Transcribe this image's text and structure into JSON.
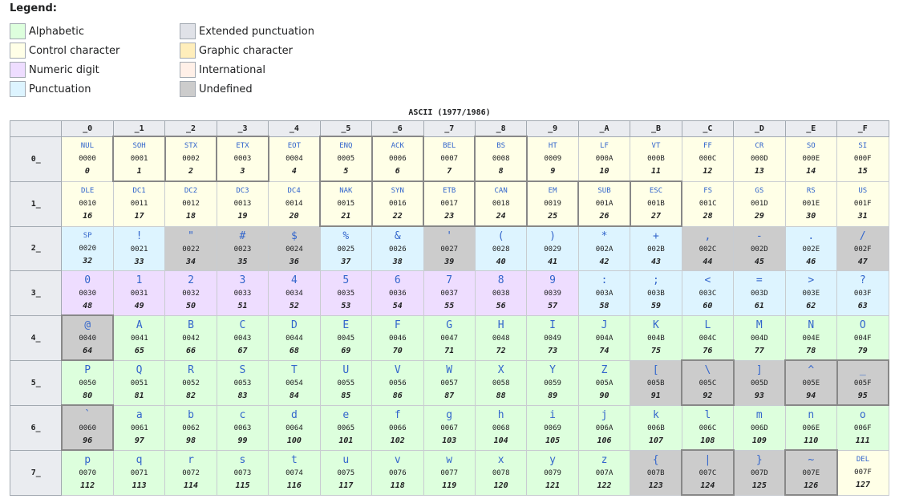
{
  "legend": {
    "title": "Legend:",
    "items": [
      {
        "label": "Alphabetic",
        "color": "#ddffdd"
      },
      {
        "label": "Control character",
        "color": "#ffffe7"
      },
      {
        "label": "Numeric digit",
        "color": "#eeddff"
      },
      {
        "label": "Punctuation",
        "color": "#ddf4ff"
      },
      {
        "label": "Extended punctuation",
        "color": "#e0e2e8"
      },
      {
        "label": "Graphic character",
        "color": "#ffeebb"
      },
      {
        "label": "International",
        "color": "#fff0e8"
      },
      {
        "label": "Undefined",
        "color": "#cccccc"
      }
    ]
  },
  "table": {
    "caption": "ASCII (1977/1986)",
    "col_headers": [
      "_0",
      "_1",
      "_2",
      "_3",
      "_4",
      "_5",
      "_6",
      "_7",
      "_8",
      "_9",
      "_A",
      "_B",
      "_C",
      "_D",
      "_E",
      "_F"
    ],
    "rows": [
      {
        "header": "0_",
        "cells": [
          {
            "g": "NUL",
            "h": "0000",
            "d": "0",
            "c": "ctl"
          },
          {
            "g": "SOH",
            "h": "0001",
            "d": "1",
            "c": "ctl",
            "ext": true
          },
          {
            "g": "STX",
            "h": "0002",
            "d": "2",
            "c": "ctl",
            "ext": true
          },
          {
            "g": "ETX",
            "h": "0003",
            "d": "3",
            "c": "ctl",
            "ext": true
          },
          {
            "g": "EOT",
            "h": "0004",
            "d": "4",
            "c": "ctl"
          },
          {
            "g": "ENQ",
            "h": "0005",
            "d": "5",
            "c": "ctl",
            "ext": true
          },
          {
            "g": "ACK",
            "h": "0006",
            "d": "6",
            "c": "ctl",
            "ext": true
          },
          {
            "g": "BEL",
            "h": "0007",
            "d": "7",
            "c": "ctl"
          },
          {
            "g": "BS",
            "h": "0008",
            "d": "8",
            "c": "ctl",
            "ext": true
          },
          {
            "g": "HT",
            "h": "0009",
            "d": "9",
            "c": "ctl"
          },
          {
            "g": "LF",
            "h": "000A",
            "d": "10",
            "c": "ctl"
          },
          {
            "g": "VT",
            "h": "000B",
            "d": "11",
            "c": "ctl"
          },
          {
            "g": "FF",
            "h": "000C",
            "d": "12",
            "c": "ctl"
          },
          {
            "g": "CR",
            "h": "000D",
            "d": "13",
            "c": "ctl"
          },
          {
            "g": "SO",
            "h": "000E",
            "d": "14",
            "c": "ctl"
          },
          {
            "g": "SI",
            "h": "000F",
            "d": "15",
            "c": "ctl"
          }
        ]
      },
      {
        "header": "1_",
        "cells": [
          {
            "g": "DLE",
            "h": "0010",
            "d": "16",
            "c": "ctl"
          },
          {
            "g": "DC1",
            "h": "0011",
            "d": "17",
            "c": "ctl"
          },
          {
            "g": "DC2",
            "h": "0012",
            "d": "18",
            "c": "ctl"
          },
          {
            "g": "DC3",
            "h": "0013",
            "d": "19",
            "c": "ctl"
          },
          {
            "g": "DC4",
            "h": "0014",
            "d": "20",
            "c": "ctl"
          },
          {
            "g": "NAK",
            "h": "0015",
            "d": "21",
            "c": "ctl",
            "ext": true
          },
          {
            "g": "SYN",
            "h": "0016",
            "d": "22",
            "c": "ctl",
            "ext": true
          },
          {
            "g": "ETB",
            "h": "0017",
            "d": "23",
            "c": "ctl",
            "ext": true
          },
          {
            "g": "CAN",
            "h": "0018",
            "d": "24",
            "c": "ctl",
            "ext": true
          },
          {
            "g": "EM",
            "h": "0019",
            "d": "25",
            "c": "ctl",
            "ext": true
          },
          {
            "g": "SUB",
            "h": "001A",
            "d": "26",
            "c": "ctl",
            "ext": true
          },
          {
            "g": "ESC",
            "h": "001B",
            "d": "27",
            "c": "ctl",
            "ext": true
          },
          {
            "g": "FS",
            "h": "001C",
            "d": "28",
            "c": "ctl"
          },
          {
            "g": "GS",
            "h": "001D",
            "d": "29",
            "c": "ctl"
          },
          {
            "g": "RS",
            "h": "001E",
            "d": "30",
            "c": "ctl"
          },
          {
            "g": "US",
            "h": "001F",
            "d": "31",
            "c": "ctl"
          }
        ]
      },
      {
        "header": "2_",
        "cells": [
          {
            "g": "SP",
            "h": "0020",
            "d": "32",
            "c": "pun",
            "small": true
          },
          {
            "g": "!",
            "h": "0021",
            "d": "33",
            "c": "pun"
          },
          {
            "g": "\"",
            "h": "0022",
            "d": "34",
            "c": "und"
          },
          {
            "g": "#",
            "h": "0023",
            "d": "35",
            "c": "und"
          },
          {
            "g": "$",
            "h": "0024",
            "d": "36",
            "c": "und"
          },
          {
            "g": "%",
            "h": "0025",
            "d": "37",
            "c": "pun"
          },
          {
            "g": "&",
            "h": "0026",
            "d": "38",
            "c": "pun"
          },
          {
            "g": "'",
            "h": "0027",
            "d": "39",
            "c": "und"
          },
          {
            "g": "(",
            "h": "0028",
            "d": "40",
            "c": "pun"
          },
          {
            "g": ")",
            "h": "0029",
            "d": "41",
            "c": "pun"
          },
          {
            "g": "*",
            "h": "002A",
            "d": "42",
            "c": "pun"
          },
          {
            "g": "+",
            "h": "002B",
            "d": "43",
            "c": "pun"
          },
          {
            "g": ",",
            "h": "002C",
            "d": "44",
            "c": "und"
          },
          {
            "g": "-",
            "h": "002D",
            "d": "45",
            "c": "und"
          },
          {
            "g": ".",
            "h": "002E",
            "d": "46",
            "c": "pun"
          },
          {
            "g": "/",
            "h": "002F",
            "d": "47",
            "c": "und"
          }
        ]
      },
      {
        "header": "3_",
        "cells": [
          {
            "g": "0",
            "h": "0030",
            "d": "48",
            "c": "num"
          },
          {
            "g": "1",
            "h": "0031",
            "d": "49",
            "c": "num"
          },
          {
            "g": "2",
            "h": "0032",
            "d": "50",
            "c": "num"
          },
          {
            "g": "3",
            "h": "0033",
            "d": "51",
            "c": "num"
          },
          {
            "g": "4",
            "h": "0034",
            "d": "52",
            "c": "num"
          },
          {
            "g": "5",
            "h": "0035",
            "d": "53",
            "c": "num"
          },
          {
            "g": "6",
            "h": "0036",
            "d": "54",
            "c": "num"
          },
          {
            "g": "7",
            "h": "0037",
            "d": "55",
            "c": "num"
          },
          {
            "g": "8",
            "h": "0038",
            "d": "56",
            "c": "num"
          },
          {
            "g": "9",
            "h": "0039",
            "d": "57",
            "c": "num"
          },
          {
            "g": ":",
            "h": "003A",
            "d": "58",
            "c": "pun"
          },
          {
            "g": ";",
            "h": "003B",
            "d": "59",
            "c": "pun"
          },
          {
            "g": "<",
            "h": "003C",
            "d": "60",
            "c": "pun"
          },
          {
            "g": "=",
            "h": "003D",
            "d": "61",
            "c": "pun"
          },
          {
            "g": ">",
            "h": "003E",
            "d": "62",
            "c": "pun"
          },
          {
            "g": "?",
            "h": "003F",
            "d": "63",
            "c": "pun"
          }
        ]
      },
      {
        "header": "4_",
        "cells": [
          {
            "g": "@",
            "h": "0040",
            "d": "64",
            "c": "und",
            "ext": true
          },
          {
            "g": "A",
            "h": "0041",
            "d": "65",
            "c": "alp"
          },
          {
            "g": "B",
            "h": "0042",
            "d": "66",
            "c": "alp"
          },
          {
            "g": "C",
            "h": "0043",
            "d": "67",
            "c": "alp"
          },
          {
            "g": "D",
            "h": "0044",
            "d": "68",
            "c": "alp"
          },
          {
            "g": "E",
            "h": "0045",
            "d": "69",
            "c": "alp"
          },
          {
            "g": "F",
            "h": "0046",
            "d": "70",
            "c": "alp"
          },
          {
            "g": "G",
            "h": "0047",
            "d": "71",
            "c": "alp"
          },
          {
            "g": "H",
            "h": "0048",
            "d": "72",
            "c": "alp"
          },
          {
            "g": "I",
            "h": "0049",
            "d": "73",
            "c": "alp"
          },
          {
            "g": "J",
            "h": "004A",
            "d": "74",
            "c": "alp"
          },
          {
            "g": "K",
            "h": "004B",
            "d": "75",
            "c": "alp"
          },
          {
            "g": "L",
            "h": "004C",
            "d": "76",
            "c": "alp"
          },
          {
            "g": "M",
            "h": "004D",
            "d": "77",
            "c": "alp"
          },
          {
            "g": "N",
            "h": "004E",
            "d": "78",
            "c": "alp"
          },
          {
            "g": "O",
            "h": "004F",
            "d": "79",
            "c": "alp"
          }
        ]
      },
      {
        "header": "5_",
        "cells": [
          {
            "g": "P",
            "h": "0050",
            "d": "80",
            "c": "alp"
          },
          {
            "g": "Q",
            "h": "0051",
            "d": "81",
            "c": "alp"
          },
          {
            "g": "R",
            "h": "0052",
            "d": "82",
            "c": "alp"
          },
          {
            "g": "S",
            "h": "0053",
            "d": "83",
            "c": "alp"
          },
          {
            "g": "T",
            "h": "0054",
            "d": "84",
            "c": "alp"
          },
          {
            "g": "U",
            "h": "0055",
            "d": "85",
            "c": "alp"
          },
          {
            "g": "V",
            "h": "0056",
            "d": "86",
            "c": "alp"
          },
          {
            "g": "W",
            "h": "0057",
            "d": "87",
            "c": "alp"
          },
          {
            "g": "X",
            "h": "0058",
            "d": "88",
            "c": "alp"
          },
          {
            "g": "Y",
            "h": "0059",
            "d": "89",
            "c": "alp"
          },
          {
            "g": "Z",
            "h": "005A",
            "d": "90",
            "c": "alp"
          },
          {
            "g": "[",
            "h": "005B",
            "d": "91",
            "c": "und"
          },
          {
            "g": "\\",
            "h": "005C",
            "d": "92",
            "c": "und",
            "ext": true
          },
          {
            "g": "]",
            "h": "005D",
            "d": "93",
            "c": "und"
          },
          {
            "g": "^",
            "h": "005E",
            "d": "94",
            "c": "und",
            "ext": true
          },
          {
            "g": "_",
            "h": "005F",
            "d": "95",
            "c": "und",
            "ext": true
          }
        ]
      },
      {
        "header": "6_",
        "cells": [
          {
            "g": "`",
            "h": "0060",
            "d": "96",
            "c": "und",
            "ext": true
          },
          {
            "g": "a",
            "h": "0061",
            "d": "97",
            "c": "alp"
          },
          {
            "g": "b",
            "h": "0062",
            "d": "98",
            "c": "alp"
          },
          {
            "g": "c",
            "h": "0063",
            "d": "99",
            "c": "alp"
          },
          {
            "g": "d",
            "h": "0064",
            "d": "100",
            "c": "alp"
          },
          {
            "g": "e",
            "h": "0065",
            "d": "101",
            "c": "alp"
          },
          {
            "g": "f",
            "h": "0066",
            "d": "102",
            "c": "alp"
          },
          {
            "g": "g",
            "h": "0067",
            "d": "103",
            "c": "alp"
          },
          {
            "g": "h",
            "h": "0068",
            "d": "104",
            "c": "alp"
          },
          {
            "g": "i",
            "h": "0069",
            "d": "105",
            "c": "alp"
          },
          {
            "g": "j",
            "h": "006A",
            "d": "106",
            "c": "alp"
          },
          {
            "g": "k",
            "h": "006B",
            "d": "107",
            "c": "alp"
          },
          {
            "g": "l",
            "h": "006C",
            "d": "108",
            "c": "alp"
          },
          {
            "g": "m",
            "h": "006D",
            "d": "109",
            "c": "alp"
          },
          {
            "g": "n",
            "h": "006E",
            "d": "110",
            "c": "alp"
          },
          {
            "g": "o",
            "h": "006F",
            "d": "111",
            "c": "alp"
          }
        ]
      },
      {
        "header": "7_",
        "cells": [
          {
            "g": "p",
            "h": "0070",
            "d": "112",
            "c": "alp"
          },
          {
            "g": "q",
            "h": "0071",
            "d": "113",
            "c": "alp"
          },
          {
            "g": "r",
            "h": "0072",
            "d": "114",
            "c": "alp"
          },
          {
            "g": "s",
            "h": "0073",
            "d": "115",
            "c": "alp"
          },
          {
            "g": "t",
            "h": "0074",
            "d": "116",
            "c": "alp"
          },
          {
            "g": "u",
            "h": "0075",
            "d": "117",
            "c": "alp"
          },
          {
            "g": "v",
            "h": "0076",
            "d": "118",
            "c": "alp"
          },
          {
            "g": "w",
            "h": "0077",
            "d": "119",
            "c": "alp"
          },
          {
            "g": "x",
            "h": "0078",
            "d": "120",
            "c": "alp"
          },
          {
            "g": "y",
            "h": "0079",
            "d": "121",
            "c": "alp"
          },
          {
            "g": "z",
            "h": "007A",
            "d": "122",
            "c": "alp"
          },
          {
            "g": "{",
            "h": "007B",
            "d": "123",
            "c": "und"
          },
          {
            "g": "|",
            "h": "007C",
            "d": "124",
            "c": "und",
            "ext": true
          },
          {
            "g": "}",
            "h": "007D",
            "d": "125",
            "c": "und"
          },
          {
            "g": "~",
            "h": "007E",
            "d": "126",
            "c": "und",
            "ext": true
          },
          {
            "g": "DEL",
            "h": "007F",
            "d": "127",
            "c": "ctl"
          }
        ]
      }
    ]
  }
}
